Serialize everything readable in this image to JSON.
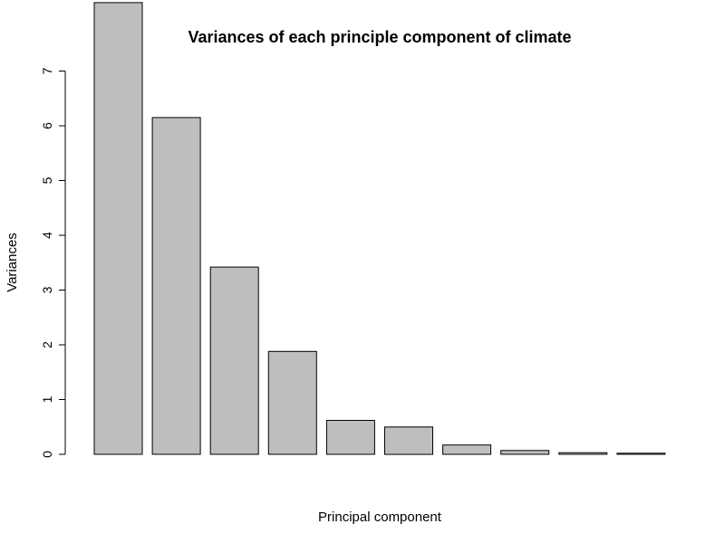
{
  "chart_data": {
    "type": "bar",
    "title": "Variances of each principle component of climate",
    "xlabel": "Principal component",
    "ylabel": "Variances",
    "values": [
      8.25,
      6.15,
      3.42,
      1.88,
      0.62,
      0.5,
      0.17,
      0.07,
      0.03,
      0.02
    ],
    "yticks": [
      0,
      1,
      2,
      3,
      4,
      5,
      6,
      7
    ],
    "ylim": [
      0,
      8.25
    ],
    "bar_color": "#bebebe",
    "grid": false
  }
}
